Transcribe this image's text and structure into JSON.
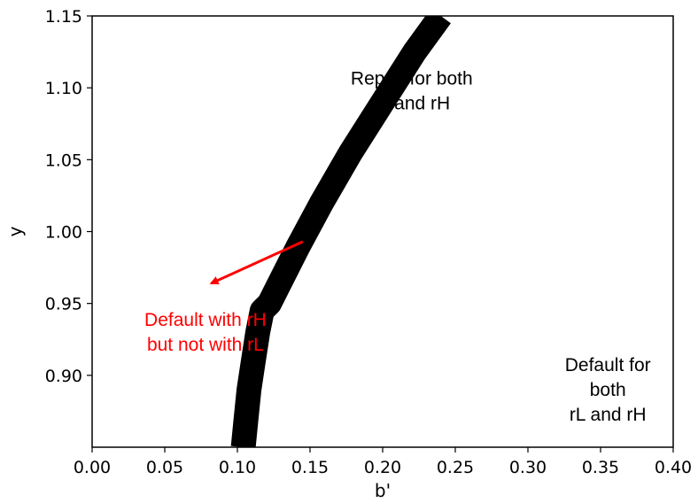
{
  "chart_data": {
    "type": "line",
    "xlabel": "b'",
    "ylabel": "y",
    "xlim": [
      0.0,
      0.4
    ],
    "ylim": [
      0.85,
      1.15
    ],
    "x_ticks": [
      "0.00",
      "0.05",
      "0.10",
      "0.15",
      "0.20",
      "0.25",
      "0.30",
      "0.35",
      "0.40"
    ],
    "y_ticks": [
      "0.90",
      "0.95",
      "1.00",
      "1.05",
      "1.10",
      "1.15"
    ],
    "grid": false,
    "series": [
      {
        "color": "#000000",
        "x": [
          0.104,
          0.106,
          0.108,
          0.111,
          0.114,
          0.117,
          0.122,
          0.128,
          0.142,
          0.158,
          0.178,
          0.2,
          0.222,
          0.24
        ],
        "y": [
          0.85,
          0.87,
          0.89,
          0.91,
          0.93,
          0.945,
          0.95,
          0.962,
          0.99,
          1.02,
          1.055,
          1.09,
          1.125,
          1.15
        ]
      }
    ],
    "annotations": [
      {
        "lines": [
          "Repay for both",
          "rL and rH"
        ],
        "x": 0.22,
        "y": 1.098,
        "color": "#000000"
      },
      {
        "lines": [
          "Default with rH",
          "but not with rL"
        ],
        "x": 0.078,
        "y": 0.93,
        "color": "#ff0000",
        "arrow_from": [
          0.145,
          0.993
        ],
        "arrow_to": [
          0.082,
          0.964
        ]
      },
      {
        "lines": [
          "Default for",
          "both",
          "rL and rH"
        ],
        "x": 0.355,
        "y": 0.89,
        "color": "#000000"
      }
    ]
  }
}
